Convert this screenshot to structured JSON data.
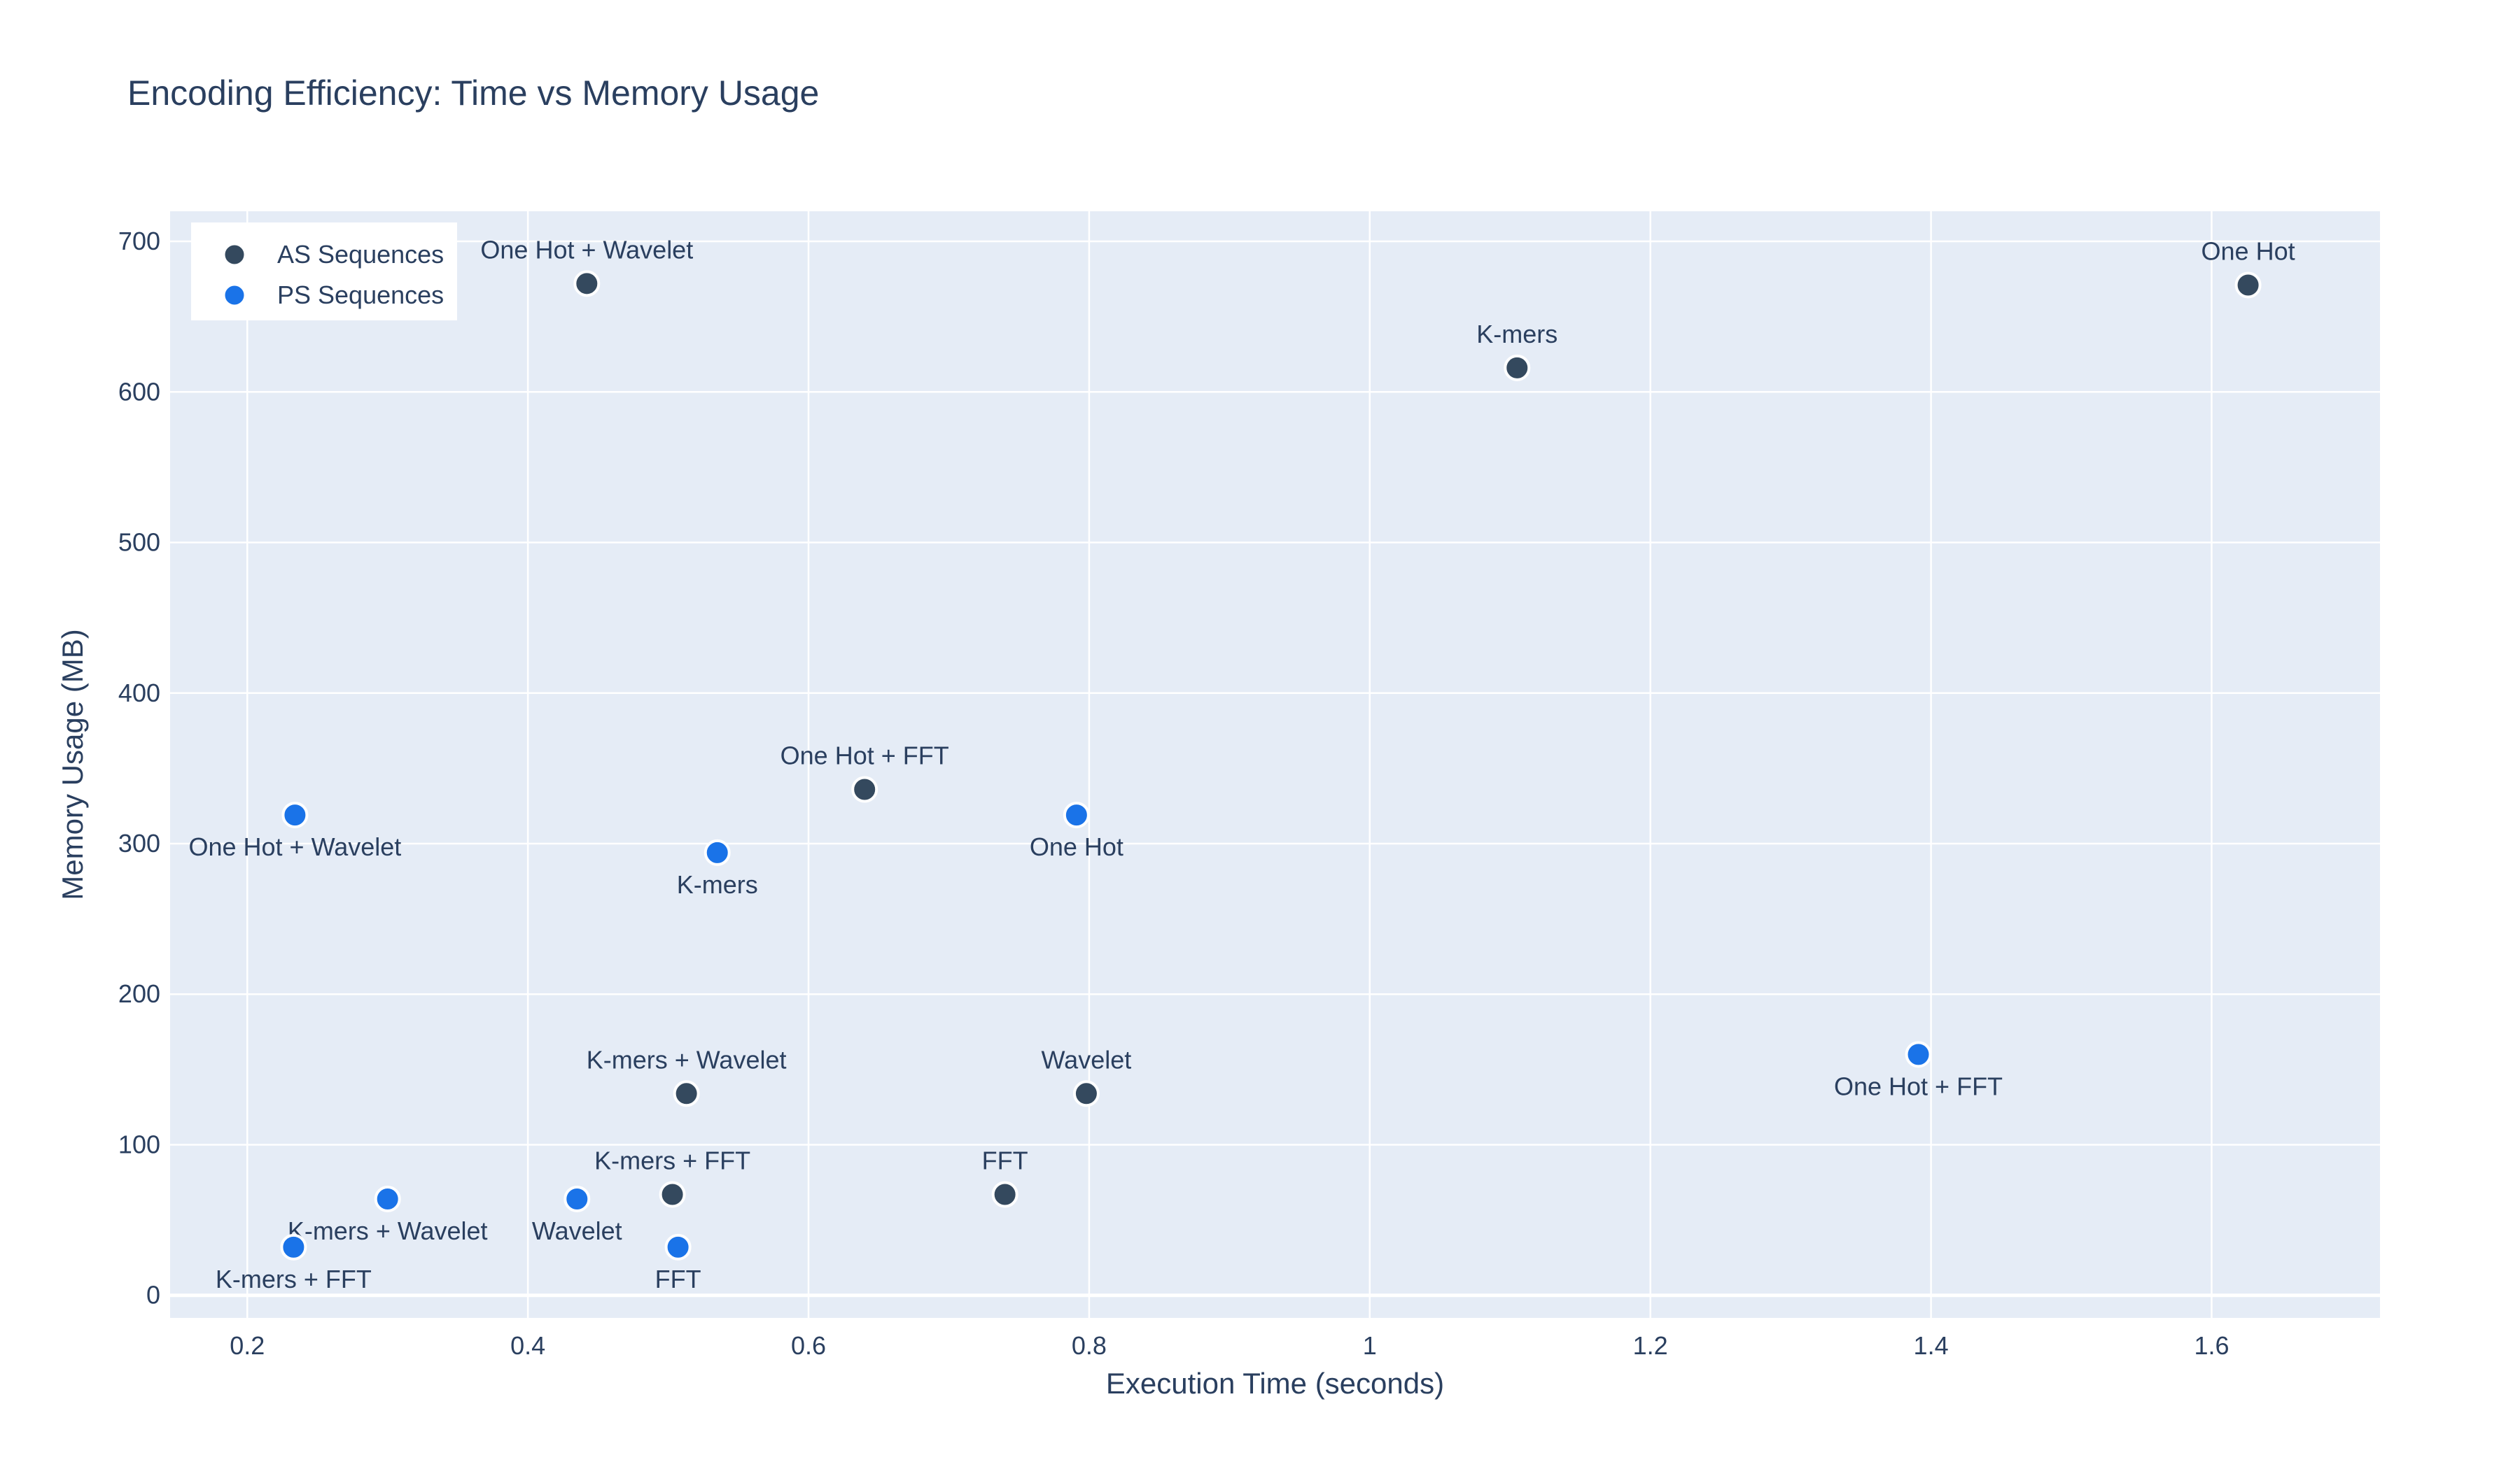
{
  "chart_data": {
    "type": "scatter",
    "title": "Encoding Efficiency: Time vs Memory Usage",
    "xlabel": "Execution Time (seconds)",
    "ylabel": "Memory Usage (MB)",
    "xlim": [
      0.145,
      1.72
    ],
    "ylim": [
      -15,
      720
    ],
    "x_ticks": [
      0.2,
      0.4,
      0.6,
      0.8,
      1,
      1.2,
      1.4,
      1.6
    ],
    "x_tick_labels": [
      "0.2",
      "0.4",
      "0.6",
      "0.8",
      "1",
      "1.2",
      "1.4",
      "1.6"
    ],
    "y_ticks": [
      0,
      100,
      200,
      300,
      400,
      500,
      600,
      700
    ],
    "y_tick_labels": [
      "0",
      "100",
      "200",
      "300",
      "400",
      "500",
      "600",
      "700"
    ],
    "grid": true,
    "legend_position": "top-left",
    "series": [
      {
        "name": "AS Sequences",
        "color": "#34495e",
        "points": [
          {
            "x": 1.626,
            "y": 671,
            "label": "One Hot",
            "label_pos": "top"
          },
          {
            "x": 1.105,
            "y": 616,
            "label": "K-mers",
            "label_pos": "top"
          },
          {
            "x": 0.442,
            "y": 672,
            "label": "One Hot + Wavelet",
            "label_pos": "top"
          },
          {
            "x": 0.64,
            "y": 336,
            "label": "One Hot + FFT",
            "label_pos": "top"
          },
          {
            "x": 0.513,
            "y": 134,
            "label": "K-mers + Wavelet",
            "label_pos": "top"
          },
          {
            "x": 0.798,
            "y": 134,
            "label": "Wavelet",
            "label_pos": "top"
          },
          {
            "x": 0.503,
            "y": 67,
            "label": "K-mers + FFT",
            "label_pos": "top"
          },
          {
            "x": 0.74,
            "y": 67,
            "label": "FFT",
            "label_pos": "top"
          }
        ]
      },
      {
        "name": "PS Sequences",
        "color": "#1a73e8",
        "points": [
          {
            "x": 0.234,
            "y": 319,
            "label": "One Hot + Wavelet",
            "label_pos": "bottom"
          },
          {
            "x": 0.535,
            "y": 294,
            "label": "K-mers",
            "label_pos": "bottom"
          },
          {
            "x": 0.791,
            "y": 319,
            "label": "One Hot",
            "label_pos": "bottom"
          },
          {
            "x": 1.391,
            "y": 160,
            "label": "One Hot + FFT",
            "label_pos": "bottom"
          },
          {
            "x": 0.3,
            "y": 64,
            "label": "K-mers + Wavelet",
            "label_pos": "bottom"
          },
          {
            "x": 0.435,
            "y": 64,
            "label": "Wavelet",
            "label_pos": "bottom"
          },
          {
            "x": 0.233,
            "y": 32,
            "label": "K-mers + FFT",
            "label_pos": "bottom"
          },
          {
            "x": 0.507,
            "y": 32,
            "label": "FFT",
            "label_pos": "bottom"
          }
        ]
      }
    ],
    "colors": {
      "plot_background": "#e5ecf6",
      "grid": "#ffffff",
      "text": "#2a3f5f",
      "marker_outline": "#ffffff",
      "legend_background": "#ffffff"
    }
  }
}
